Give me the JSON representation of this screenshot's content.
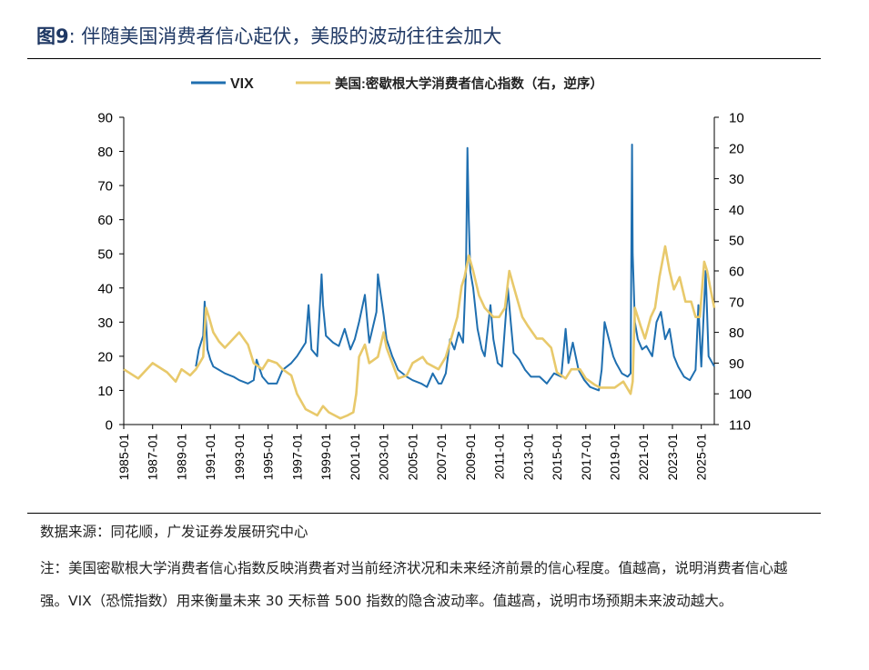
{
  "figure": {
    "label": "图9",
    "separator": ":",
    "title": "伴随美国消费者信心起伏，美股的波动往往会加大"
  },
  "source": "数据来源：同花顺，广发证券发展研究中心",
  "note": "注：美国密歇根大学消费者信心指数反映消费者对当前经济状况和未来经济前景的信心程度。值越高，说明消费者信心越强。VIX（恐慌指数）用来衡量未来 30 天标普 500 指数的隐含波动率。值越高，说明市场预期未来波动越大。",
  "colors": {
    "vix": "#1f6fb0",
    "sentiment": "#e8c96b",
    "title": "#1f3864"
  },
  "chart_data": {
    "type": "line",
    "legend": [
      "VIX",
      "美国:密歇根大学消费者信心指数（右，逆序）"
    ],
    "legend_position": "top-center",
    "y_left": {
      "ylim": [
        0,
        90
      ],
      "ticks": [
        0,
        10,
        20,
        30,
        40,
        50,
        60,
        70,
        80,
        90
      ]
    },
    "y_right": {
      "ylim": [
        110,
        10
      ],
      "inverted": true,
      "ticks": [
        10,
        20,
        30,
        40,
        50,
        60,
        70,
        80,
        90,
        100,
        110
      ]
    },
    "x_range": [
      1985.0,
      2025.9
    ],
    "x_ticks": [
      "1985-01",
      "1987-01",
      "1989-01",
      "1991-01",
      "1993-01",
      "1995-01",
      "1997-01",
      "1999-01",
      "2001-01",
      "2003-01",
      "2005-01",
      "2007-01",
      "2009-01",
      "2011-01",
      "2013-01",
      "2015-01",
      "2017-01",
      "2019-01",
      "2021-01",
      "2023-01",
      "2025-01"
    ],
    "series": [
      {
        "name": "VIX",
        "axis": "left",
        "x": [
          1990.0,
          1990.2,
          1990.5,
          1990.6,
          1990.7,
          1990.8,
          1991.0,
          1991.2,
          1991.6,
          1992.0,
          1992.6,
          1993.0,
          1993.6,
          1994.0,
          1994.2,
          1994.6,
          1995.0,
          1995.6,
          1996.0,
          1996.6,
          1997.0,
          1997.6,
          1997.8,
          1998.0,
          1998.4,
          1998.7,
          1998.8,
          1999.0,
          1999.5,
          1999.9,
          2000.3,
          2000.7,
          2001.0,
          2001.3,
          2001.7,
          2002.0,
          2002.5,
          2002.6,
          2003.0,
          2003.2,
          2003.6,
          2004.0,
          2004.6,
          2005.0,
          2005.6,
          2006.0,
          2006.4,
          2006.8,
          2007.0,
          2007.3,
          2007.6,
          2007.9,
          2008.2,
          2008.5,
          2008.7,
          2008.8,
          2008.9,
          2009.0,
          2009.2,
          2009.5,
          2009.8,
          2010.0,
          2010.4,
          2010.6,
          2010.9,
          2011.2,
          2011.6,
          2011.8,
          2012.0,
          2012.4,
          2012.8,
          2013.2,
          2013.8,
          2014.3,
          2014.8,
          2015.3,
          2015.6,
          2015.8,
          2016.1,
          2016.5,
          2016.9,
          2017.3,
          2017.9,
          2018.1,
          2018.3,
          2018.9,
          2019.1,
          2019.5,
          2019.9,
          2020.1,
          2020.2,
          2020.25,
          2020.4,
          2020.6,
          2020.9,
          2021.2,
          2021.6,
          2021.9,
          2022.2,
          2022.5,
          2022.8,
          2023.1,
          2023.4,
          2023.8,
          2024.2,
          2024.6,
          2024.8,
          2025.0,
          2025.3,
          2025.5,
          2025.9
        ],
        "values": [
          17,
          22,
          26,
          36,
          30,
          22,
          19,
          17,
          16,
          15,
          14,
          13,
          12,
          13,
          19,
          14,
          12,
          12,
          16,
          18,
          20,
          24,
          35,
          22,
          20,
          44,
          35,
          26,
          24,
          23,
          28,
          22,
          25,
          30,
          38,
          24,
          33,
          44,
          32,
          25,
          20,
          16,
          14,
          13,
          12,
          11,
          15,
          12,
          12,
          15,
          25,
          22,
          27,
          24,
          45,
          81,
          60,
          45,
          40,
          28,
          22,
          20,
          35,
          25,
          18,
          17,
          40,
          30,
          21,
          19,
          16,
          14,
          14,
          12,
          15,
          14,
          28,
          18,
          24,
          16,
          13,
          11,
          10,
          16,
          30,
          20,
          18,
          15,
          14,
          15,
          82,
          50,
          30,
          25,
          22,
          23,
          20,
          30,
          33,
          25,
          28,
          20,
          17,
          14,
          13,
          16,
          35,
          17,
          45,
          20,
          17
        ]
      },
      {
        "name": "美国:密歇根大学消费者信心指数（右，逆序）",
        "axis": "right",
        "x": [
          1985.0,
          1986.0,
          1987.0,
          1988.0,
          1988.6,
          1989.0,
          1989.6,
          1990.0,
          1990.5,
          1990.7,
          1990.9,
          1991.2,
          1991.6,
          1992.0,
          1992.6,
          1993.0,
          1993.6,
          1994.0,
          1994.6,
          1995.0,
          1995.6,
          1996.0,
          1996.6,
          1997.0,
          1997.6,
          1998.0,
          1998.4,
          1998.8,
          1999.2,
          1999.6,
          2000.0,
          2000.5,
          2000.9,
          2001.1,
          2001.3,
          2001.7,
          2002.0,
          2002.6,
          2003.0,
          2003.2,
          2003.6,
          2004.0,
          2004.6,
          2005.0,
          2005.7,
          2006.0,
          2006.8,
          2007.3,
          2007.8,
          2008.1,
          2008.4,
          2008.6,
          2008.9,
          2009.2,
          2009.6,
          2010.0,
          2010.6,
          2011.0,
          2011.4,
          2011.7,
          2012.0,
          2012.6,
          2013.0,
          2013.6,
          2014.0,
          2014.6,
          2015.0,
          2015.6,
          2016.0,
          2016.6,
          2017.0,
          2017.6,
          2018.0,
          2018.6,
          2019.0,
          2019.6,
          2020.1,
          2020.25,
          2020.4,
          2020.8,
          2021.1,
          2021.5,
          2021.8,
          2022.1,
          2022.5,
          2022.8,
          2023.1,
          2023.5,
          2023.9,
          2024.3,
          2024.6,
          2024.9,
          2025.2,
          2025.4,
          2025.6,
          2025.9
        ],
        "values": [
          92,
          95,
          90,
          93,
          96,
          92,
          94,
          92,
          88,
          72,
          75,
          80,
          83,
          85,
          82,
          80,
          84,
          90,
          92,
          89,
          90,
          92,
          94,
          100,
          105,
          106,
          107,
          104,
          106,
          107,
          108,
          107,
          106,
          100,
          88,
          84,
          90,
          88,
          80,
          85,
          90,
          95,
          94,
          90,
          88,
          90,
          92,
          88,
          80,
          75,
          65,
          62,
          55,
          60,
          68,
          72,
          75,
          75,
          72,
          60,
          65,
          75,
          78,
          82,
          82,
          85,
          93,
          95,
          92,
          92,
          95,
          97,
          98,
          98,
          98,
          96,
          100,
          96,
          72,
          78,
          82,
          75,
          72,
          62,
          52,
          60,
          66,
          62,
          70,
          70,
          75,
          75,
          57,
          60,
          65,
          72
        ]
      }
    ]
  }
}
